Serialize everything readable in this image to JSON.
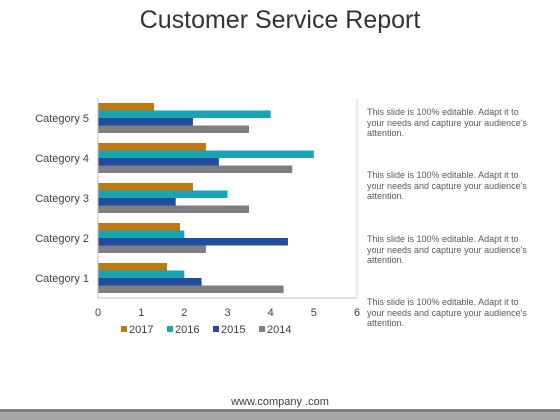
{
  "title": "Customer Service Report",
  "notes": [
    "This slide is 100% editable. Adapt it to your needs and capture your audience's attention.",
    "This slide is 100% editable. Adapt it to your needs and capture your audience's attention.",
    "This slide is 100% editable. Adapt it to your needs and capture your audience's attention.",
    "This slide is 100% editable. Adapt it to your needs and capture your audience's attention."
  ],
  "footer": {
    "url": "www.company .com"
  },
  "chart_data": {
    "type": "bar",
    "orientation": "horizontal",
    "categories": [
      "Category 1",
      "Category 2",
      "Category 3",
      "Category 4",
      "Category 5"
    ],
    "series": [
      {
        "name": "2017",
        "color": "#c07a12",
        "values": [
          1.6,
          1.9,
          2.2,
          2.5,
          1.3
        ]
      },
      {
        "name": "2016",
        "color": "#1aa3b5",
        "values": [
          2.0,
          2.0,
          3.0,
          5.0,
          4.0
        ]
      },
      {
        "name": "2015",
        "color": "#1f4e9c",
        "values": [
          2.4,
          4.4,
          1.8,
          2.8,
          2.2
        ]
      },
      {
        "name": "2014",
        "color": "#7f7f7f",
        "values": [
          4.3,
          2.5,
          3.5,
          4.5,
          3.5
        ]
      }
    ],
    "xlim": [
      0,
      6
    ],
    "xticks": [
      "0",
      "1",
      "2",
      "3",
      "4",
      "5",
      "6"
    ],
    "grid": false,
    "legend": "bottom"
  }
}
